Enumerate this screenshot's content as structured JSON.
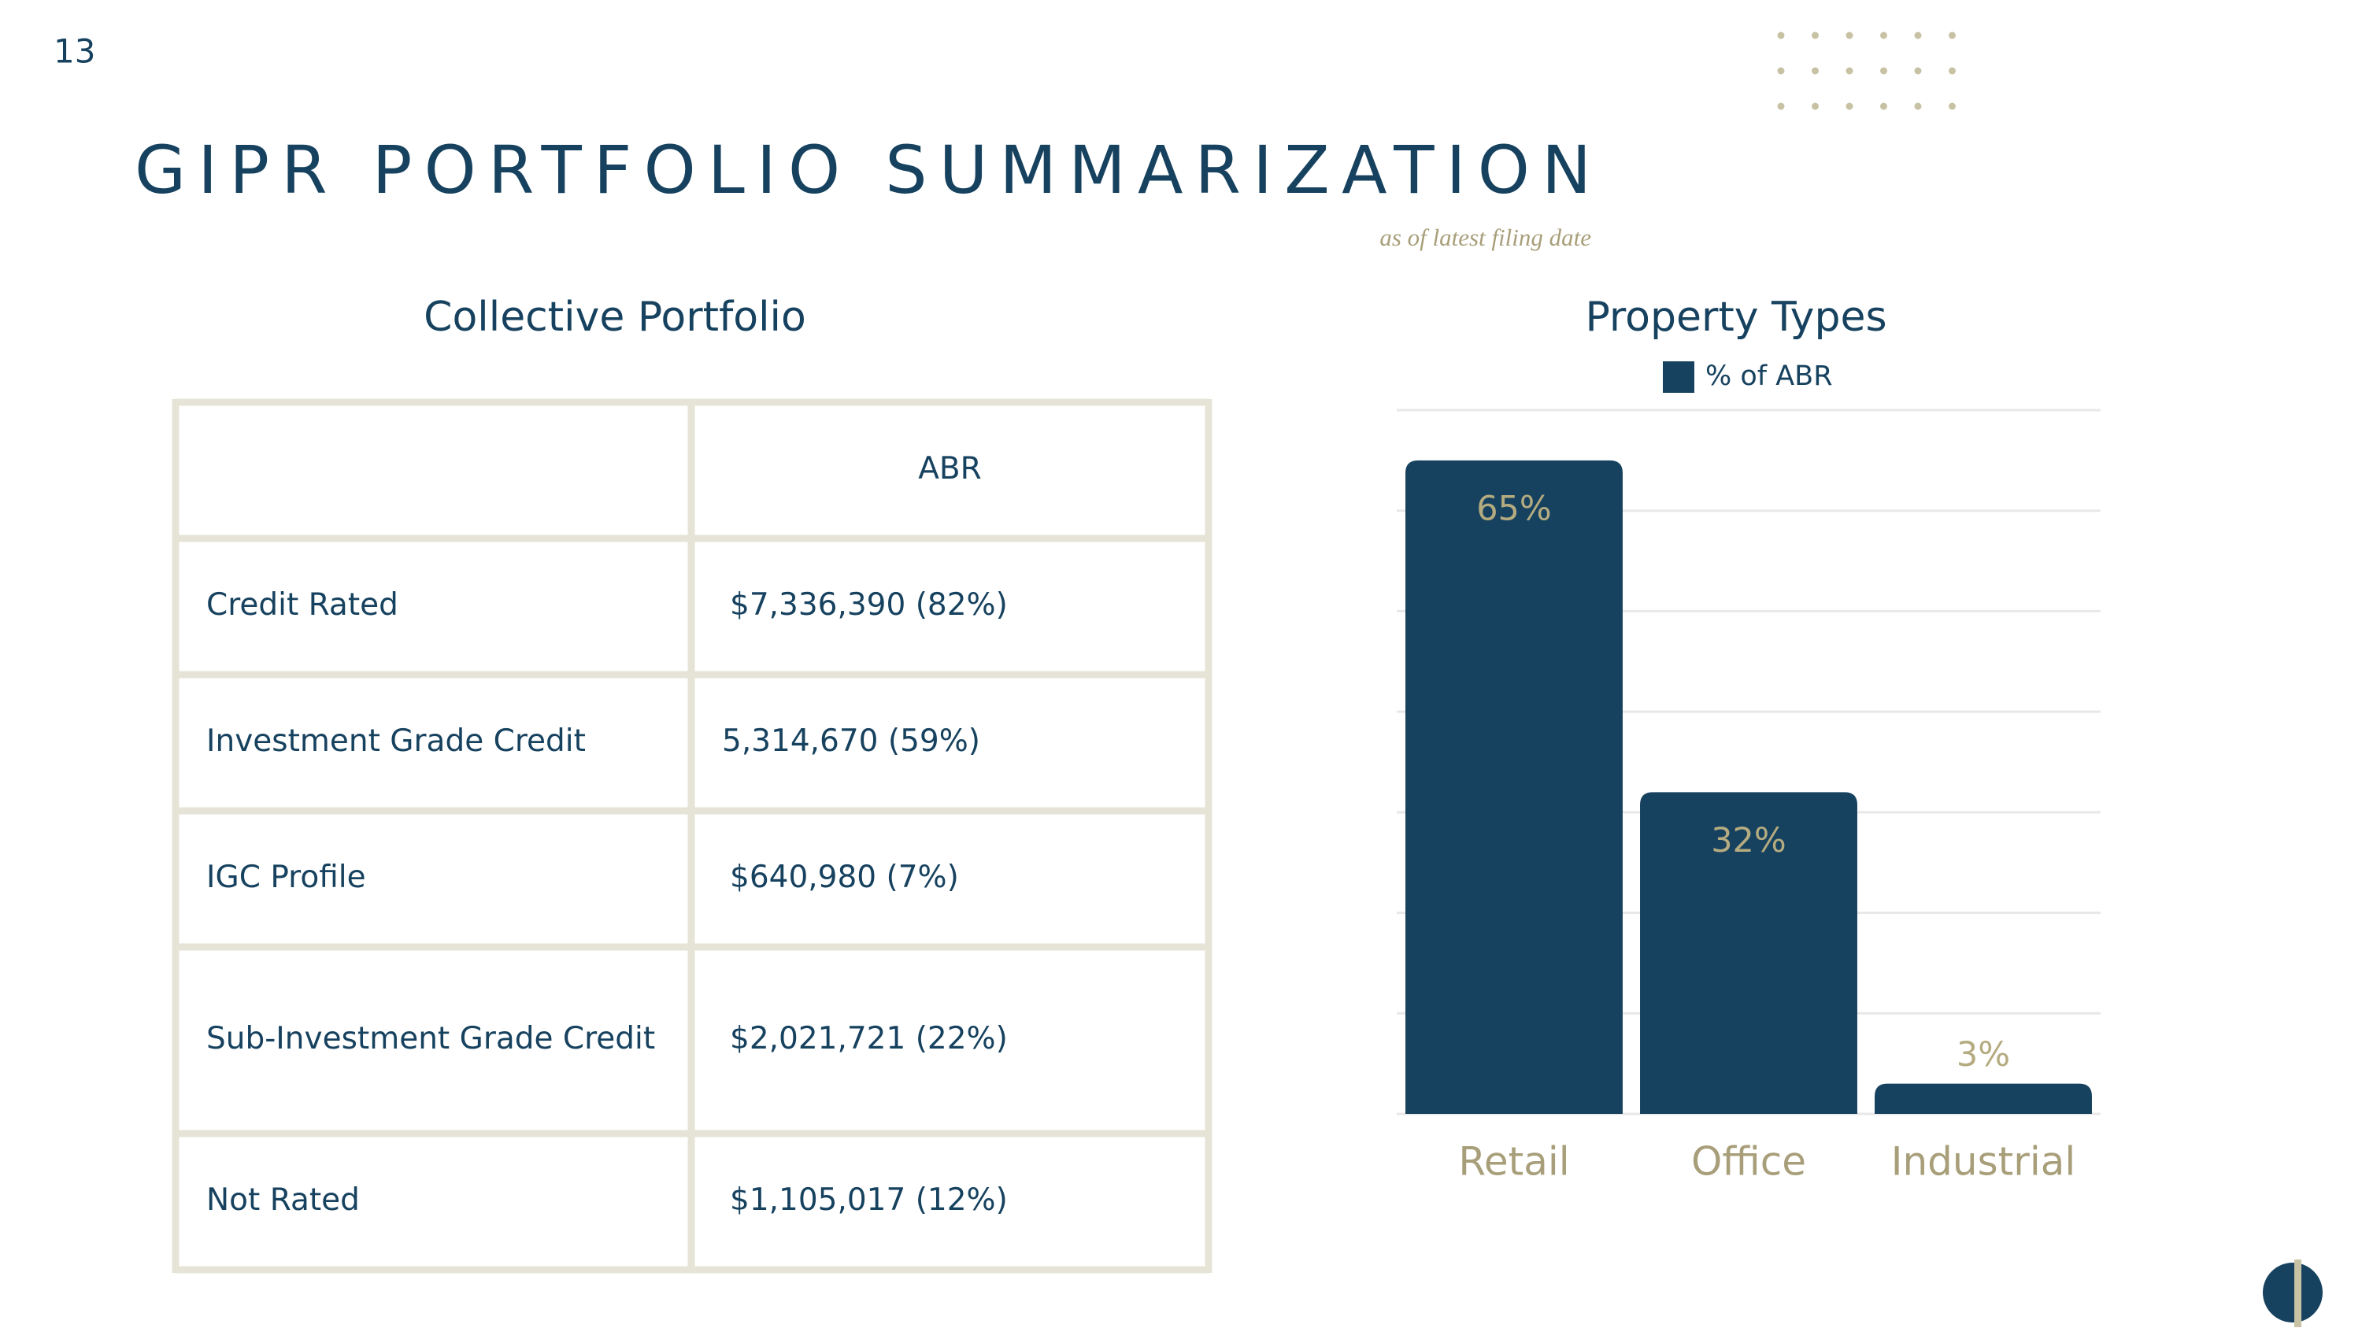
{
  "page_number": "13",
  "title": "GIPR PORTFOLIO SUMMARIZATION",
  "subtitle": "as of latest filing date",
  "table": {
    "title": "Collective Portfolio",
    "header": [
      "",
      "ABR"
    ],
    "rows": [
      [
        "Credit Rated",
        "$7,336,390 (82%)"
      ],
      [
        "Investment Grade Credit",
        "5,314,670 (59%)"
      ],
      [
        "IGC Profile",
        "$640,980 (7%)"
      ],
      [
        "Sub-Investment Grade Credit",
        "$2,021,721 (22%)"
      ],
      [
        "Not Rated",
        "$1,105,017 (12%)"
      ]
    ]
  },
  "chart_data": {
    "type": "bar",
    "title": "Property Types",
    "categories": [
      "Retail",
      "Office",
      "Industrial"
    ],
    "series": [
      {
        "name": "% of ABR",
        "color": "#17425f",
        "values": [
          65,
          32,
          3
        ],
        "value_labels": [
          "65%",
          "32%",
          "3%"
        ]
      }
    ],
    "ylim": [
      0,
      70
    ],
    "yticks": [
      0,
      10,
      20,
      30,
      40,
      50,
      60,
      70
    ],
    "grid": true,
    "legend": "top"
  }
}
